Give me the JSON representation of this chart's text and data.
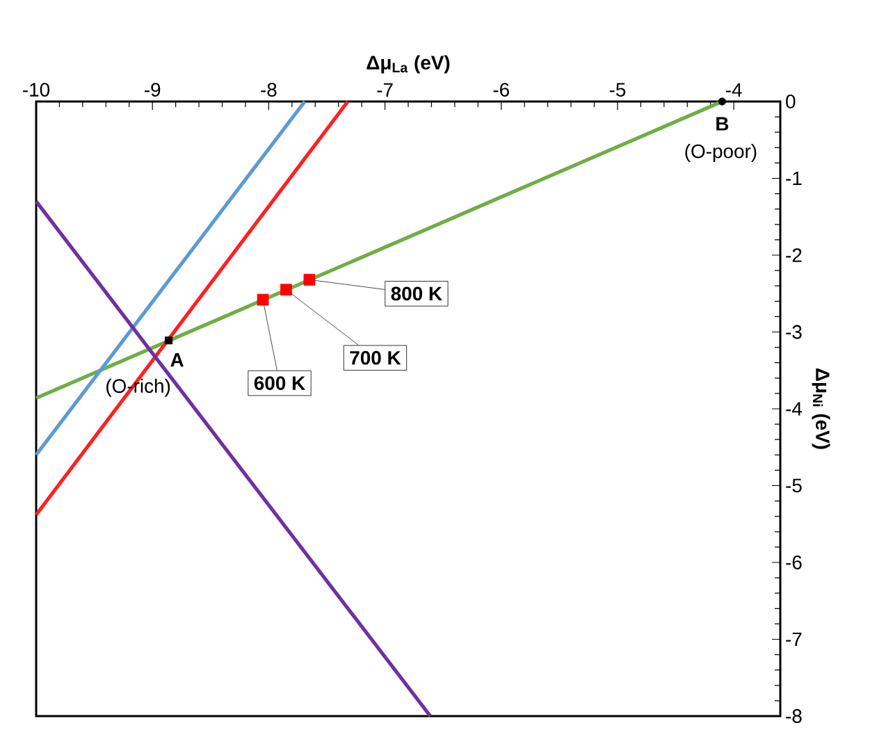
{
  "chart_data": {
    "type": "line",
    "xlabel": "**Δμ$_{La}$ (eV)**",
    "ylabel": "**Δμ$_{Ni}$ (eV)**",
    "xlim": [
      -10,
      -3.6
    ],
    "ylim": [
      -8,
      0
    ],
    "xticks": [
      -10,
      -9,
      -8,
      -7,
      -6,
      -5,
      -4
    ],
    "yticks": [
      -8,
      -7,
      -6,
      -5,
      -4,
      -3,
      -2,
      -1,
      0
    ],
    "grid": false,
    "line_style": "solid",
    "series": [
      {
        "color": "#70ad47",
        "x": [
          -10,
          -4.1
        ],
        "values": [
          -3.86,
          0
        ]
      },
      {
        "color": "#5b9bd5",
        "x": [
          -10,
          -7.69
        ],
        "values": [
          -4.6,
          0
        ]
      },
      {
        "color": "#ff2020",
        "x": [
          -10,
          -7.32
        ],
        "values": [
          -5.38,
          0
        ]
      },
      {
        "color": "#7030a0",
        "x": [
          -10,
          -6.61
        ],
        "values": [
          -1.3,
          -8
        ]
      },
      {
        "type": "scatter",
        "marker": "square",
        "color": "#ff0000",
        "x": [
          -8.05,
          -7.85,
          -7.65
        ],
        "values": [
          -2.58,
          -2.45,
          -2.32
        ]
      },
      {
        "type": "scatter",
        "marker": "square",
        "color": "#000000",
        "x": [
          -8.86
        ],
        "values": [
          -3.11
        ]
      },
      {
        "type": "scatter",
        "marker": "circle",
        "color": "#000000",
        "x": [
          -4.1
        ],
        "values": [
          0
        ]
      }
    ],
    "annotations": [
      {
        "text": "600 K",
        "x": -8.05,
        "y": -2.58
      },
      {
        "text": "700 K",
        "x": -7.85,
        "y": -2.45
      },
      {
        "text": "800 K",
        "x": -7.65,
        "y": -2.32
      },
      {
        "text": "**A**",
        "x": -8.86,
        "y": -3.11
      },
      {
        "text": "(O-rich)",
        "x": -8.86,
        "y": -3.11
      },
      {
        "text": "**B**",
        "x": -4.1,
        "y": 0
      },
      {
        "text": "(O-poor)",
        "x": -4.1,
        "y": 0
      }
    ]
  }
}
